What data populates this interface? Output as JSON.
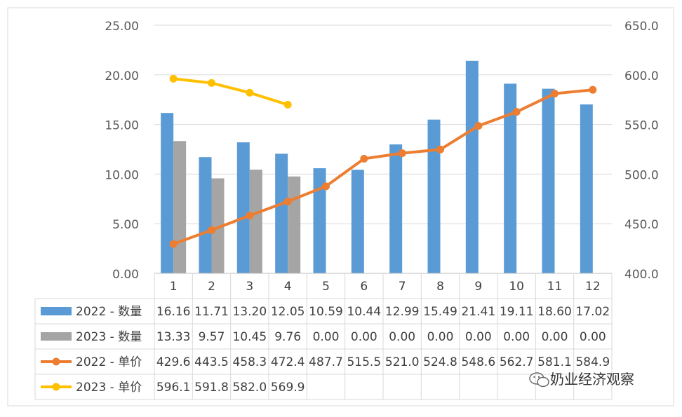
{
  "chart_data": {
    "type": "bar-line-combo",
    "categories": [
      "1",
      "2",
      "3",
      "4",
      "5",
      "6",
      "7",
      "8",
      "9",
      "10",
      "11",
      "12"
    ],
    "y_left": {
      "min": 0,
      "max": 25,
      "step": 5,
      "tick_labels": [
        "0.00",
        "5.00",
        "10.00",
        "15.00",
        "20.00",
        "25.00"
      ]
    },
    "y_right": {
      "min": 400,
      "max": 650,
      "step": 50,
      "tick_labels": [
        "400.0",
        "450.0",
        "500.0",
        "550.0",
        "600.0",
        "650.0"
      ]
    },
    "gridlines": true,
    "legend": "data-table-below",
    "series": [
      {
        "name": "2022 - 数量",
        "type": "bar",
        "axis": "left",
        "color": "#5B9BD5",
        "values": [
          16.16,
          11.71,
          13.2,
          12.05,
          10.59,
          10.44,
          12.99,
          15.49,
          21.41,
          19.11,
          18.6,
          17.02
        ],
        "labels": [
          "16.16",
          "11.71",
          "13.20",
          "12.05",
          "10.59",
          "10.44",
          "12.99",
          "15.49",
          "21.41",
          "19.11",
          "18.60",
          "17.02"
        ]
      },
      {
        "name": "2023 - 数量",
        "type": "bar",
        "axis": "left",
        "color": "#A5A5A5",
        "values": [
          13.33,
          9.57,
          10.45,
          9.76,
          0,
          0,
          0,
          0,
          0,
          0,
          0,
          0
        ],
        "labels": [
          "13.33",
          "9.57",
          "10.45",
          "9.76",
          "0.00",
          "0.00",
          "0.00",
          "0.00",
          "0.00",
          "0.00",
          "0.00",
          "0.00"
        ]
      },
      {
        "name": "2022 - 单价",
        "type": "line",
        "axis": "right",
        "color": "#ED7D31",
        "values": [
          429.6,
          443.5,
          458.3,
          472.4,
          487.7,
          515.5,
          521.0,
          524.8,
          548.6,
          562.7,
          581.1,
          584.9
        ],
        "labels": [
          "429.6",
          "443.5",
          "458.3",
          "472.4",
          "487.7",
          "515.5",
          "521.0",
          "524.8",
          "548.6",
          "562.7",
          "581.1",
          "584.9"
        ]
      },
      {
        "name": "2023 - 单价",
        "type": "line",
        "axis": "right",
        "color": "#FFC000",
        "values": [
          596.1,
          591.8,
          582.0,
          569.9,
          null,
          null,
          null,
          null,
          null,
          null,
          null,
          null
        ],
        "labels": [
          "596.1",
          "591.8",
          "582.0",
          "569.9",
          "",
          "",
          "",
          "",
          "",
          "",
          "",
          ""
        ]
      }
    ],
    "watermark": "奶业经济观察"
  }
}
